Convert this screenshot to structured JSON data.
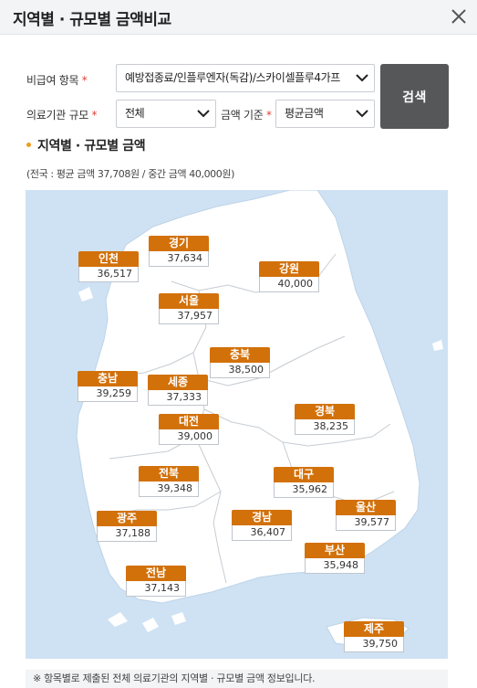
{
  "header": {
    "title": "지역별 · 규모별 금액비교"
  },
  "form": {
    "item_label": "비급여 항목",
    "item_value": "예방접종료/인플루엔자(독감)/스카이셀플루4가프",
    "scale_label": "의료기관 규모",
    "scale_value": "전체",
    "basis_label": "금액 기준",
    "basis_value": "평균금액",
    "required_mark": "*",
    "search_label": "검색"
  },
  "section": {
    "title": "지역별 · 규모별 금액",
    "subtitle": "(전국 : 평균 금액 37,708원 / 중간 금액 40,000원)"
  },
  "regions": {
    "gyeonggi": {
      "name": "경기",
      "value": "37,634"
    },
    "incheon": {
      "name": "인천",
      "value": "36,517"
    },
    "gangwon": {
      "name": "강원",
      "value": "40,000"
    },
    "seoul": {
      "name": "서울",
      "value": "37,957"
    },
    "chungbuk": {
      "name": "충북",
      "value": "38,500"
    },
    "chungnam": {
      "name": "충남",
      "value": "39,259"
    },
    "sejong": {
      "name": "세종",
      "value": "37,333"
    },
    "gyeongbuk": {
      "name": "경북",
      "value": "38,235"
    },
    "daejeon": {
      "name": "대전",
      "value": "39,000"
    },
    "jeonbuk": {
      "name": "전북",
      "value": "39,348"
    },
    "daegu": {
      "name": "대구",
      "value": "35,962"
    },
    "gwangju": {
      "name": "광주",
      "value": "37,188"
    },
    "gyeongnam": {
      "name": "경남",
      "value": "36,407"
    },
    "ulsan": {
      "name": "울산",
      "value": "39,577"
    },
    "busan": {
      "name": "부산",
      "value": "35,948"
    },
    "jeonnam": {
      "name": "전남",
      "value": "37,143"
    },
    "jeju": {
      "name": "제주",
      "value": "39,750"
    }
  },
  "footer": {
    "note": "※ 항목별로 제출된 전체 의료기관의 지역별 · 규모별 금액 정보입니다."
  },
  "colors": {
    "accent": "#d2710a",
    "sea": "#cfe2f4",
    "land": "#ffffff",
    "button": "#555759"
  }
}
